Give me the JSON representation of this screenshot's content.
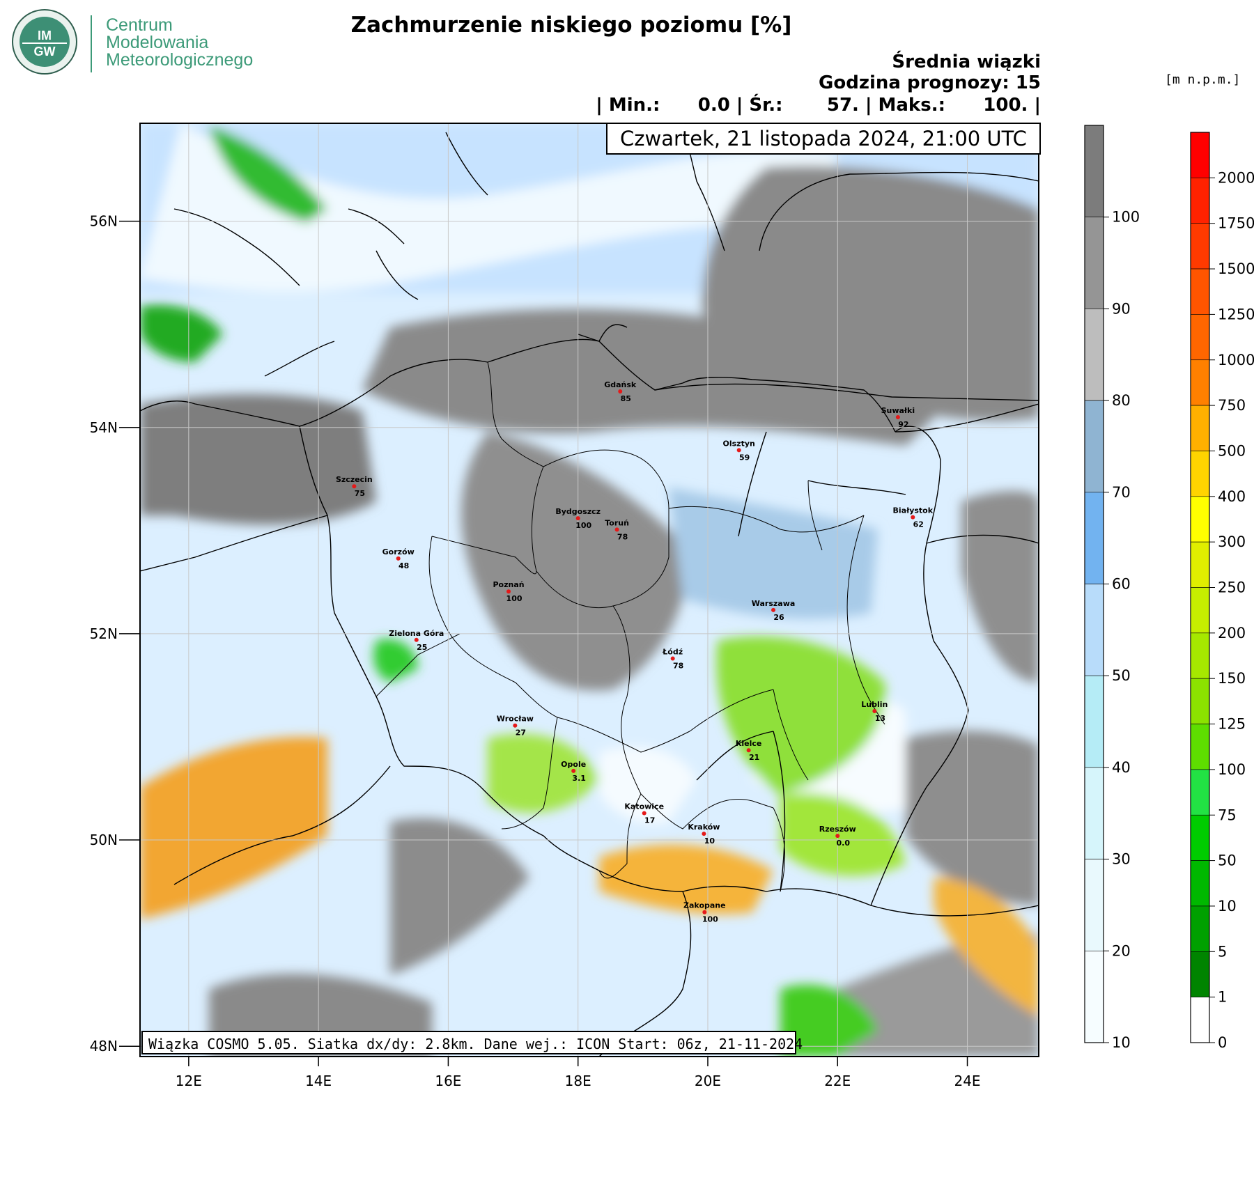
{
  "header": {
    "org_name_lines": [
      "Centrum",
      "Modelowania",
      "Meteorologicznego"
    ],
    "logo_text_top": "IM",
    "logo_text_bottom": "GW",
    "title": "Zachmurzenie niskiego poziomu [%]",
    "subtitle": "Średnia wiązki",
    "forecast_hour": "Godzina prognozy: 15",
    "stats": "| Min.:      0.0 | Śr.:       57. | Maks.:      100. |",
    "unit_label": "[m n.p.m.]"
  },
  "map": {
    "date": "Czwartek, 21 listopada 2024, 21:00 UTC",
    "footer": "Wiązka COSMO 5.05. Siatka dx/dy: 2.8km. Dane wej.: ICON Start: 06z, 21-11-2024",
    "lat_ticks": [
      "56N",
      "54N",
      "52N",
      "50N",
      "48N"
    ],
    "lon_ticks": [
      "12E",
      "14E",
      "16E",
      "18E",
      "20E",
      "22E",
      "24E"
    ],
    "lat_values": [
      56,
      54,
      52,
      50,
      48
    ],
    "lon_values": [
      12,
      14,
      16,
      18,
      20,
      22,
      24
    ],
    "lon_range": [
      11.25,
      25.1
    ],
    "lat_range": [
      47.9,
      56.95
    ],
    "cities": [
      {
        "name": "Gdańsk",
        "value": "85",
        "lon": 18.65,
        "lat": 54.35
      },
      {
        "name": "Suwałki",
        "value": "92",
        "lon": 22.93,
        "lat": 54.1
      },
      {
        "name": "Olsztyn",
        "value": "59",
        "lon": 20.48,
        "lat": 53.78
      },
      {
        "name": "Szczecin",
        "value": "75",
        "lon": 14.55,
        "lat": 53.43
      },
      {
        "name": "Białystok",
        "value": "62",
        "lon": 23.16,
        "lat": 53.13
      },
      {
        "name": "Bydgoszcz",
        "value": "100",
        "lon": 18.0,
        "lat": 53.12
      },
      {
        "name": "Toruń",
        "value": "78",
        "lon": 18.6,
        "lat": 53.01
      },
      {
        "name": "Gorzów",
        "value": "48",
        "lon": 15.23,
        "lat": 52.73
      },
      {
        "name": "Poznań",
        "value": "100",
        "lon": 16.93,
        "lat": 52.41
      },
      {
        "name": "Warszawa",
        "value": "26",
        "lon": 21.01,
        "lat": 52.23
      },
      {
        "name": "Zielona Góra",
        "value": "25",
        "lon": 15.51,
        "lat": 51.94
      },
      {
        "name": "Łódź",
        "value": "78",
        "lon": 19.46,
        "lat": 51.76
      },
      {
        "name": "Lublin",
        "value": "13",
        "lon": 22.57,
        "lat": 51.25
      },
      {
        "name": "Wrocław",
        "value": "27",
        "lon": 17.03,
        "lat": 51.11
      },
      {
        "name": "Kielce",
        "value": "21",
        "lon": 20.63,
        "lat": 50.87
      },
      {
        "name": "Opole",
        "value": "3.1",
        "lon": 17.93,
        "lat": 50.67
      },
      {
        "name": "Katowice",
        "value": "17",
        "lon": 19.02,
        "lat": 50.26
      },
      {
        "name": "Kraków",
        "value": "10",
        "lon": 19.94,
        "lat": 50.06
      },
      {
        "name": "Rzeszów",
        "value": "0.0",
        "lon": 22.0,
        "lat": 50.04
      },
      {
        "name": "Zakopane",
        "value": "100",
        "lon": 19.95,
        "lat": 49.3
      }
    ]
  },
  "colorbar_cloud": {
    "labels": [
      "100",
      "90",
      "80",
      "70",
      "60",
      "50",
      "40",
      "30",
      "20",
      "10"
    ],
    "colors": [
      "#7c7c7c",
      "#959595",
      "#bdbdbd",
      "#8fb4d2",
      "#72b3f0",
      "#b8dcfa",
      "#b5ecf6",
      "#d6f5fb",
      "#e9f9fd",
      "#f6fdff"
    ]
  },
  "colorbar_height": {
    "labels": [
      "2000",
      "1750",
      "1500",
      "1250",
      "1000",
      "750",
      "500",
      "400",
      "300",
      "250",
      "200",
      "150",
      "125",
      "100",
      "75",
      "50",
      "10",
      "5",
      "1",
      "0"
    ],
    "colors": [
      "#ff0000",
      "#ff2200",
      "#ff3a00",
      "#ff5500",
      "#ff6600",
      "#ff8000",
      "#ffb000",
      "#ffd400",
      "#ffff00",
      "#e0ee00",
      "#c6ee00",
      "#a6e800",
      "#8ce200",
      "#5ede00",
      "#22e244",
      "#00cc00",
      "#00b800",
      "#00a000",
      "#008400",
      "#ffffff"
    ]
  }
}
